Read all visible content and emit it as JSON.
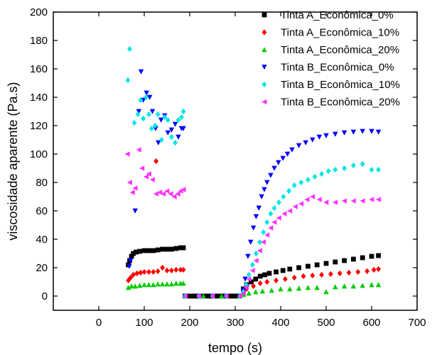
{
  "chart_data": {
    "type": "scatter",
    "title": "",
    "xlabel": "tempo (s)",
    "ylabel": "viscosidade aparente (Pa.s)",
    "xlim": [
      -100,
      700
    ],
    "ylim": [
      -10,
      200
    ],
    "xticks": [
      0,
      100,
      200,
      300,
      400,
      500,
      600,
      700
    ],
    "yticks": [
      0,
      20,
      40,
      60,
      80,
      100,
      120,
      140,
      160,
      180,
      200
    ],
    "legend_position": "top-right",
    "grid": false,
    "series": [
      {
        "name": "Tinta A_Econômica_0%",
        "color": "#000000",
        "marker": "square",
        "points": [
          [
            65,
            22
          ],
          [
            68,
            25
          ],
          [
            72,
            28
          ],
          [
            76,
            30
          ],
          [
            82,
            31
          ],
          [
            90,
            31.5
          ],
          [
            100,
            32
          ],
          [
            110,
            32
          ],
          [
            120,
            32
          ],
          [
            130,
            32.5
          ],
          [
            140,
            33
          ],
          [
            150,
            33
          ],
          [
            160,
            33
          ],
          [
            170,
            33.5
          ],
          [
            180,
            34
          ],
          [
            186,
            34
          ],
          [
            190,
            0
          ],
          [
            200,
            0
          ],
          [
            210,
            0
          ],
          [
            220,
            0
          ],
          [
            230,
            0
          ],
          [
            240,
            0
          ],
          [
            250,
            0
          ],
          [
            260,
            0
          ],
          [
            270,
            0
          ],
          [
            280,
            0
          ],
          [
            290,
            0
          ],
          [
            300,
            0
          ],
          [
            310,
            0
          ],
          [
            318,
            5
          ],
          [
            325,
            8
          ],
          [
            335,
            10
          ],
          [
            345,
            12
          ],
          [
            355,
            14
          ],
          [
            365,
            15
          ],
          [
            375,
            16
          ],
          [
            390,
            17
          ],
          [
            405,
            18
          ],
          [
            420,
            19
          ],
          [
            440,
            20
          ],
          [
            460,
            21
          ],
          [
            480,
            22
          ],
          [
            500,
            23
          ],
          [
            520,
            24
          ],
          [
            540,
            25
          ],
          [
            560,
            26
          ],
          [
            580,
            27
          ],
          [
            600,
            28
          ],
          [
            615,
            28.5
          ]
        ]
      },
      {
        "name": "Tinta A_Econômica_10%",
        "color": "#ff0000",
        "marker": "diamond",
        "points": [
          [
            65,
            11
          ],
          [
            70,
            13
          ],
          [
            76,
            15
          ],
          [
            84,
            16
          ],
          [
            92,
            16.5
          ],
          [
            100,
            17
          ],
          [
            110,
            17
          ],
          [
            120,
            17
          ],
          [
            126,
            95
          ],
          [
            130,
            17.5
          ],
          [
            140,
            20
          ],
          [
            150,
            18
          ],
          [
            160,
            18
          ],
          [
            170,
            18.5
          ],
          [
            180,
            18.5
          ],
          [
            186,
            18.5
          ],
          [
            190,
            0
          ],
          [
            220,
            0
          ],
          [
            250,
            0
          ],
          [
            280,
            0
          ],
          [
            310,
            0
          ],
          [
            318,
            3
          ],
          [
            325,
            5
          ],
          [
            340,
            7
          ],
          [
            355,
            9
          ],
          [
            370,
            10
          ],
          [
            390,
            11
          ],
          [
            410,
            12
          ],
          [
            430,
            13
          ],
          [
            450,
            14
          ],
          [
            470,
            14.5
          ],
          [
            490,
            15
          ],
          [
            510,
            15.5
          ],
          [
            530,
            16
          ],
          [
            550,
            16.5
          ],
          [
            570,
            17
          ],
          [
            590,
            17.5
          ],
          [
            605,
            18.5
          ],
          [
            615,
            19
          ]
        ]
      },
      {
        "name": "Tinta A_Econômica_20%",
        "color": "#00cc00",
        "marker": "triangle-up",
        "points": [
          [
            65,
            6
          ],
          [
            72,
            7
          ],
          [
            80,
            7
          ],
          [
            90,
            7.5
          ],
          [
            100,
            8
          ],
          [
            110,
            8
          ],
          [
            120,
            8
          ],
          [
            130,
            8.5
          ],
          [
            140,
            8.5
          ],
          [
            150,
            8.5
          ],
          [
            160,
            8.5
          ],
          [
            170,
            9
          ],
          [
            180,
            9
          ],
          [
            186,
            9
          ],
          [
            190,
            0
          ],
          [
            230,
            0
          ],
          [
            270,
            0
          ],
          [
            310,
            0
          ],
          [
            318,
            1
          ],
          [
            330,
            2
          ],
          [
            345,
            3
          ],
          [
            360,
            3.5
          ],
          [
            380,
            4
          ],
          [
            400,
            5
          ],
          [
            420,
            5
          ],
          [
            440,
            5.5
          ],
          [
            460,
            6
          ],
          [
            480,
            6
          ],
          [
            500,
            3
          ],
          [
            520,
            6.5
          ],
          [
            540,
            7
          ],
          [
            560,
            7
          ],
          [
            580,
            7.5
          ],
          [
            600,
            8
          ],
          [
            615,
            8
          ]
        ]
      },
      {
        "name": "Tinta B_Econômica_0%",
        "color": "#0000ff",
        "marker": "triangle-down",
        "points": [
          [
            67,
            21
          ],
          [
            70,
            25
          ],
          [
            80,
            60
          ],
          [
            88,
            130
          ],
          [
            93,
            158
          ],
          [
            98,
            138
          ],
          [
            105,
            143
          ],
          [
            112,
            140
          ],
          [
            118,
            130
          ],
          [
            125,
            118
          ],
          [
            131,
            108
          ],
          [
            137,
            124
          ],
          [
            145,
            127
          ],
          [
            152,
            115
          ],
          [
            160,
            117
          ],
          [
            168,
            121
          ],
          [
            175,
            112
          ],
          [
            182,
            118
          ],
          [
            186,
            118
          ],
          [
            190,
            0
          ],
          [
            220,
            0
          ],
          [
            250,
            0
          ],
          [
            280,
            0
          ],
          [
            310,
            0
          ],
          [
            318,
            4
          ],
          [
            322,
            12
          ],
          [
            328,
            28
          ],
          [
            334,
            38
          ],
          [
            340,
            48
          ],
          [
            346,
            56
          ],
          [
            352,
            62
          ],
          [
            358,
            70
          ],
          [
            364,
            75
          ],
          [
            370,
            80
          ],
          [
            378,
            85
          ],
          [
            386,
            90
          ],
          [
            395,
            94
          ],
          [
            405,
            97
          ],
          [
            415,
            100
          ],
          [
            425,
            103
          ],
          [
            440,
            106
          ],
          [
            455,
            108
          ],
          [
            470,
            110
          ],
          [
            485,
            112
          ],
          [
            500,
            113
          ],
          [
            520,
            114
          ],
          [
            540,
            115
          ],
          [
            560,
            115.5
          ],
          [
            580,
            116
          ],
          [
            600,
            116
          ],
          [
            615,
            115.5
          ]
        ]
      },
      {
        "name": "Tinta B_Econômica_10%",
        "color": "#00e5e5",
        "marker": "diamond",
        "points": [
          [
            64,
            152
          ],
          [
            68,
            174
          ],
          [
            78,
            122
          ],
          [
            86,
            128
          ],
          [
            92,
            138
          ],
          [
            98,
            125
          ],
          [
            104,
            140
          ],
          [
            110,
            128
          ],
          [
            116,
            118
          ],
          [
            124,
            120
          ],
          [
            130,
            128
          ],
          [
            138,
            110
          ],
          [
            145,
            126
          ],
          [
            152,
            124
          ],
          [
            160,
            112
          ],
          [
            168,
            108
          ],
          [
            175,
            124
          ],
          [
            182,
            126
          ],
          [
            186,
            130
          ],
          [
            190,
            0
          ],
          [
            220,
            0
          ],
          [
            250,
            0
          ],
          [
            280,
            0
          ],
          [
            310,
            0
          ],
          [
            318,
            3
          ],
          [
            324,
            8
          ],
          [
            330,
            15
          ],
          [
            338,
            22
          ],
          [
            346,
            30
          ],
          [
            354,
            38
          ],
          [
            362,
            45
          ],
          [
            370,
            52
          ],
          [
            378,
            58
          ],
          [
            386,
            62
          ],
          [
            396,
            66
          ],
          [
            406,
            70
          ],
          [
            418,
            74
          ],
          [
            430,
            78
          ],
          [
            445,
            80
          ],
          [
            460,
            82
          ],
          [
            475,
            84
          ],
          [
            490,
            86
          ],
          [
            505,
            88
          ],
          [
            520,
            89
          ],
          [
            540,
            90
          ],
          [
            560,
            92
          ],
          [
            580,
            93
          ],
          [
            600,
            89
          ],
          [
            615,
            89
          ]
        ]
      },
      {
        "name": "Tinta B_Econômica_20%",
        "color": "#ff33ff",
        "marker": "triangle-left",
        "points": [
          [
            63,
            100
          ],
          [
            68,
            80
          ],
          [
            74,
            73
          ],
          [
            80,
            76
          ],
          [
            88,
            103
          ],
          [
            95,
            90
          ],
          [
            104,
            84
          ],
          [
            110,
            86
          ],
          [
            118,
            82
          ],
          [
            126,
            72
          ],
          [
            134,
            73
          ],
          [
            142,
            72
          ],
          [
            150,
            74
          ],
          [
            158,
            72
          ],
          [
            166,
            70
          ],
          [
            174,
            72
          ],
          [
            180,
            74
          ],
          [
            186,
            75
          ],
          [
            190,
            0
          ],
          [
            220,
            0
          ],
          [
            250,
            0
          ],
          [
            280,
            0
          ],
          [
            310,
            0
          ],
          [
            318,
            2
          ],
          [
            324,
            6
          ],
          [
            330,
            12
          ],
          [
            338,
            18
          ],
          [
            346,
            25
          ],
          [
            354,
            32
          ],
          [
            362,
            38
          ],
          [
            370,
            43
          ],
          [
            378,
            48
          ],
          [
            386,
            52
          ],
          [
            396,
            55
          ],
          [
            408,
            58
          ],
          [
            420,
            60
          ],
          [
            432,
            63
          ],
          [
            445,
            65
          ],
          [
            458,
            68
          ],
          [
            470,
            70
          ],
          [
            485,
            68
          ],
          [
            500,
            66
          ],
          [
            520,
            66
          ],
          [
            540,
            67
          ],
          [
            560,
            67
          ],
          [
            580,
            67
          ],
          [
            600,
            68
          ],
          [
            615,
            68
          ]
        ]
      }
    ]
  }
}
